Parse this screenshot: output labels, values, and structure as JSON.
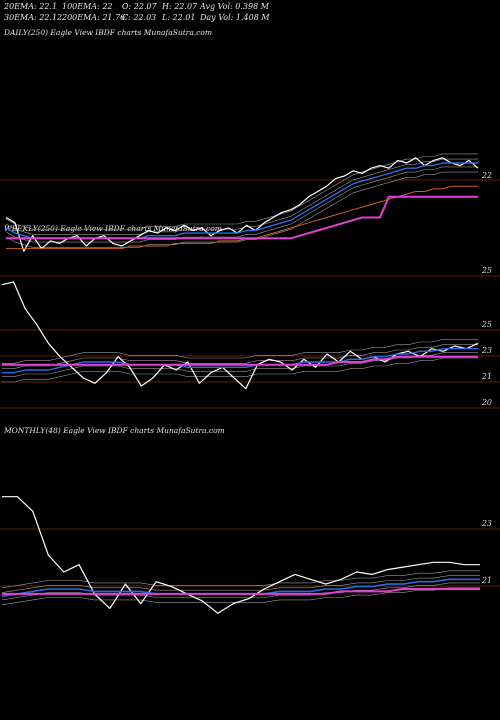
{
  "header": {
    "row1": [
      "20EMA: 22.1",
      "100EMA: 22",
      "O: 22.07",
      "H: 22.07",
      "Avg Vol: 0.398 M"
    ],
    "row2": [
      "30EMA: 22.12",
      "200EMA: 21.76",
      "C: 22.03",
      "L: 22.01",
      "Day Vol: 1.408 M"
    ]
  },
  "colors": {
    "price": "#ffffff",
    "ema_blue": "#2b6be0",
    "ema_orange": "#c8641e",
    "magenta": "#e040d8",
    "ema_gray": "#9a9a9a",
    "grid": "#7a2e0c"
  },
  "chart_data": [
    {
      "type": "line",
      "panel": "daily",
      "title": "DAILY(250) Eagle  View  IBDF charts MunafaSutra.com",
      "y_ticks": [
        "22",
        "25"
      ],
      "series": [
        {
          "values": [
            22.6,
            22.4,
            21.3,
            21.9,
            21.4,
            21.7,
            21.6,
            21.8,
            21.9,
            21.5,
            21.8,
            21.9,
            21.6,
            21.5,
            21.7,
            21.9,
            22.1,
            22.0,
            22.2,
            22.1,
            22.3,
            22.1,
            22.2,
            21.9,
            22.1,
            22.2,
            22.0,
            22.3,
            22.1,
            22.4,
            22.6,
            22.8,
            22.9,
            23.1,
            23.4,
            23.6,
            23.8,
            24.1,
            24.2,
            24.4,
            24.3,
            24.5,
            24.6,
            24.5,
            24.8,
            24.7,
            24.9,
            24.6,
            24.8,
            24.9,
            24.7,
            24.6,
            24.8,
            24.5
          ]
        },
        {
          "values": [
            22.2,
            22.0,
            21.9,
            21.8,
            21.8,
            21.8,
            21.8,
            21.8,
            21.8,
            21.8,
            21.8,
            21.8,
            21.8,
            21.8,
            21.8,
            21.8,
            21.9,
            21.9,
            21.9,
            21.9,
            22.0,
            22.0,
            22.0,
            22.0,
            22.0,
            22.0,
            22.0,
            22.1,
            22.1,
            22.2,
            22.3,
            22.4,
            22.5,
            22.7,
            22.9,
            23.1,
            23.3,
            23.5,
            23.7,
            23.9,
            24.0,
            24.1,
            24.2,
            24.3,
            24.4,
            24.5,
            24.5,
            24.6,
            24.6,
            24.7,
            24.7,
            24.7,
            24.7,
            24.7
          ]
        },
        {
          "values": [
            21.4,
            21.4,
            21.4,
            21.4,
            21.4,
            21.4,
            21.4,
            21.4,
            21.4,
            21.4,
            21.4,
            21.4,
            21.4,
            21.4,
            21.5,
            21.5,
            21.5,
            21.5,
            21.5,
            21.6,
            21.6,
            21.6,
            21.6,
            21.6,
            21.7,
            21.7,
            21.7,
            21.8,
            21.8,
            21.9,
            22.0,
            22.1,
            22.2,
            22.3,
            22.4,
            22.5,
            22.6,
            22.7,
            22.8,
            22.9,
            23.0,
            23.1,
            23.2,
            23.3,
            23.4,
            23.5,
            23.6,
            23.6,
            23.7,
            23.7,
            23.8,
            23.8,
            23.8,
            23.8
          ]
        },
        {
          "values": [
            21.8,
            21.8,
            21.8,
            21.8,
            21.8,
            21.8,
            21.8,
            21.8,
            21.8,
            21.8,
            21.8,
            21.8,
            21.8,
            21.8,
            21.8,
            21.8,
            21.8,
            21.8,
            21.8,
            21.8,
            21.8,
            21.8,
            21.8,
            21.8,
            21.8,
            21.8,
            21.8,
            21.8,
            21.8,
            21.8,
            21.8,
            21.8,
            21.8,
            21.9,
            22.0,
            22.1,
            22.2,
            22.3,
            22.4,
            22.5,
            22.6,
            22.6,
            22.6,
            23.4,
            23.4,
            23.4,
            23.4,
            23.4,
            23.4,
            23.4,
            23.4,
            23.4,
            23.4,
            23.4
          ]
        }
      ]
    },
    {
      "type": "line",
      "panel": "weekly",
      "title": "WEEKLY(250) Eagle  View  IBDF charts MunafaSutra.com",
      "y_ticks": [
        "25",
        "23",
        "21",
        "20"
      ],
      "series": [
        {
          "values": [
            24.5,
            24.6,
            23.6,
            23.0,
            22.3,
            21.8,
            21.4,
            21.0,
            20.8,
            21.2,
            21.8,
            21.4,
            20.7,
            21.0,
            21.5,
            21.3,
            21.6,
            20.8,
            21.2,
            21.4,
            21.0,
            20.6,
            21.5,
            21.7,
            21.6,
            21.3,
            21.7,
            21.4,
            21.9,
            21.6,
            22.0,
            21.7,
            21.8,
            21.6,
            21.9,
            22.0,
            21.8,
            22.1,
            22.0,
            22.2,
            22.1,
            22.3
          ]
        },
        {
          "values": [
            21.2,
            21.2,
            21.3,
            21.3,
            21.3,
            21.4,
            21.5,
            21.6,
            21.6,
            21.6,
            21.6,
            21.5,
            21.5,
            21.5,
            21.5,
            21.5,
            21.4,
            21.4,
            21.4,
            21.4,
            21.4,
            21.4,
            21.5,
            21.5,
            21.5,
            21.5,
            21.6,
            21.6,
            21.6,
            21.6,
            21.7,
            21.7,
            21.8,
            21.8,
            21.9,
            21.9,
            22.0,
            22.0,
            22.1,
            22.1,
            22.1,
            22.1
          ]
        },
        {
          "values": [
            21.5,
            21.5,
            21.5,
            21.5,
            21.5,
            21.5,
            21.5,
            21.5,
            21.5,
            21.5,
            21.5,
            21.5,
            21.5,
            21.5,
            21.5,
            21.5,
            21.5,
            21.5,
            21.5,
            21.5,
            21.5,
            21.5,
            21.5,
            21.5,
            21.5,
            21.5,
            21.5,
            21.5,
            21.5,
            21.6,
            21.6,
            21.6,
            21.7,
            21.7,
            21.8,
            21.8,
            21.8,
            21.8,
            21.8,
            21.8,
            21.8,
            21.8
          ]
        }
      ]
    },
    {
      "type": "line",
      "panel": "monthly",
      "title": "MONTHLY(48) Eagle  View  IBDF charts MunafaSutra.com",
      "y_ticks": [
        "23",
        "21"
      ],
      "series": [
        {
          "values": [
            25.4,
            25.4,
            24.8,
            23.0,
            22.3,
            22.6,
            21.4,
            20.8,
            21.8,
            21.0,
            21.9,
            21.7,
            21.4,
            21.1,
            20.6,
            21.0,
            21.2,
            21.6,
            21.9,
            22.2,
            22.0,
            21.8,
            22.0,
            22.3,
            22.2,
            22.4,
            22.5,
            22.6,
            22.7,
            22.7,
            22.6,
            22.6
          ]
        },
        {
          "values": [
            21.3,
            21.4,
            21.5,
            21.6,
            21.6,
            21.6,
            21.5,
            21.5,
            21.5,
            21.5,
            21.4,
            21.4,
            21.4,
            21.4,
            21.4,
            21.4,
            21.4,
            21.4,
            21.5,
            21.5,
            21.5,
            21.6,
            21.6,
            21.7,
            21.7,
            21.8,
            21.8,
            21.9,
            21.9,
            22.0,
            22.0,
            22.0
          ]
        },
        {
          "values": [
            21.4,
            21.4,
            21.4,
            21.4,
            21.4,
            21.4,
            21.4,
            21.4,
            21.4,
            21.4,
            21.4,
            21.4,
            21.4,
            21.4,
            21.4,
            21.4,
            21.4,
            21.4,
            21.4,
            21.4,
            21.4,
            21.4,
            21.5,
            21.5,
            21.5,
            21.5,
            21.6,
            21.6,
            21.6,
            21.6,
            21.6,
            21.6
          ]
        }
      ]
    }
  ]
}
